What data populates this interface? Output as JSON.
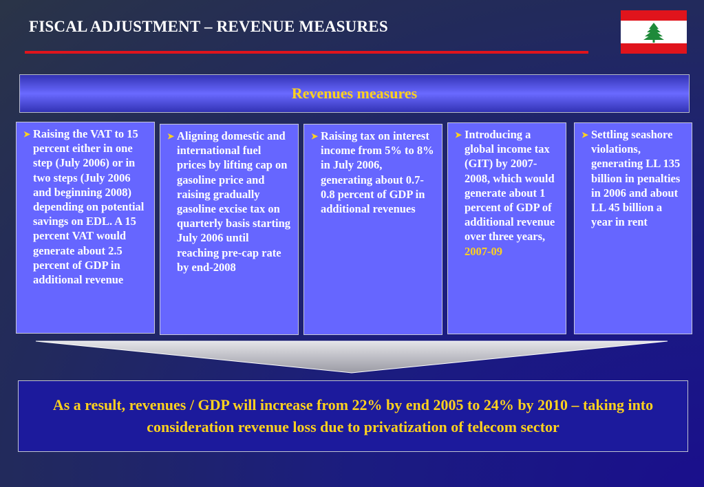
{
  "slide": {
    "title": "FISCAL ADJUSTMENT – REVENUE MEASURES",
    "colors": {
      "background": "#1b1c80",
      "accent_red": "#e0141c",
      "highlight_yellow": "#ffd21e",
      "card_fill": "#6666ff"
    }
  },
  "flag": {
    "icon": "lebanon-flag-icon"
  },
  "header": {
    "label": "Revenues measures"
  },
  "measures": [
    {
      "text": "Raising the VAT to 15  percent either in one step (July 2006) or in two steps (July 2006 and beginning 2008) depending on potential savings on EDL. A 15 percent VAT would generate about 2.5 percent of GDP in additional revenue"
    },
    {
      "text": "Aligning domestic and international fuel prices by lifting cap on gasoline price and raising gradually gasoline excise tax on quarterly basis starting July 2006 until reaching pre-cap rate by end-2008"
    },
    {
      "text": "Raising tax on interest income from 5% to 8%  in July 2006, generating about 0.7- 0.8 percent of GDP in additional revenues"
    },
    {
      "text": "Introducing a global income tax (GIT) by 2007-2008, which would generate about 1 percent of GDP of additional revenue over three years,",
      "highlight": "2007-09"
    },
    {
      "text": "Settling seashore violations, generating LL 135 billion  in penalties in 2006 and about LL 45  billion a year in rent"
    }
  ],
  "result": {
    "text": "As a result,  revenues / GDP will increase from 22% by end 2005 to 24% by 2010 – taking into consideration revenue loss due to privatization of telecom sector"
  }
}
